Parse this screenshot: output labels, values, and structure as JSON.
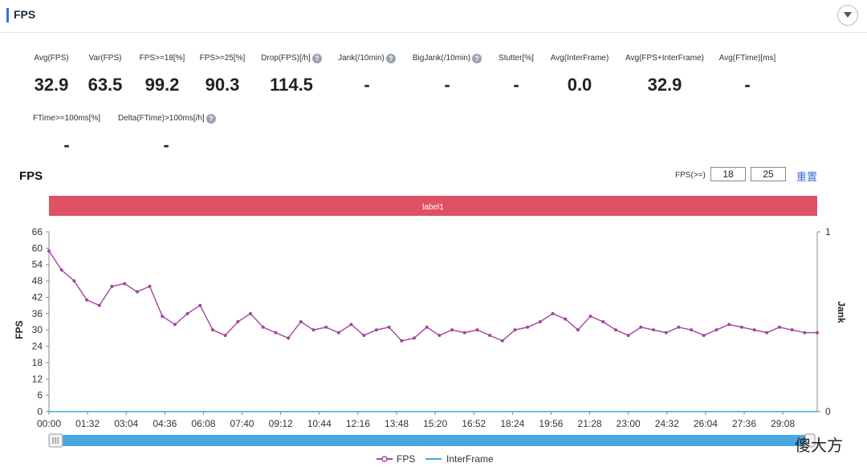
{
  "panel": {
    "title": "FPS"
  },
  "metrics": [
    {
      "label": "Avg(FPS)",
      "value": "32.9",
      "help": false
    },
    {
      "label": "Var(FPS)",
      "value": "63.5",
      "help": false
    },
    {
      "label": "FPS>=18[%]",
      "value": "99.2",
      "help": false
    },
    {
      "label": "FPS>=25[%]",
      "value": "90.3",
      "help": false
    },
    {
      "label": "Drop(FPS)[/h]",
      "value": "114.5",
      "help": true
    },
    {
      "label": "Jank(/10min)",
      "value": "-",
      "help": true
    },
    {
      "label": "BigJank(/10min)",
      "value": "-",
      "help": true
    },
    {
      "label": "Stutter[%]",
      "value": "-",
      "help": false
    },
    {
      "label": "Avg(InterFrame)",
      "value": "0.0",
      "help": false
    },
    {
      "label": "Avg(FPS+InterFrame)",
      "value": "32.9",
      "help": false
    },
    {
      "label": "Avg(FTime)[ms]",
      "value": "-",
      "help": false
    },
    {
      "label": "FTime>=100ms[%]",
      "value": "-",
      "help": false
    },
    {
      "label": "Delta(FTime)>100ms[/h]",
      "value": "-",
      "help": true
    }
  ],
  "help_glyph": "?",
  "chart_header": {
    "title": "FPS",
    "threshold_label": "FPS(>=)",
    "threshold_1": "18",
    "threshold_2": "25",
    "reset_label": "重置"
  },
  "watermark": "傻大方",
  "chart_data": {
    "type": "line",
    "ylabel": "FPS",
    "y2label": "Jank",
    "ylim": [
      0,
      66
    ],
    "yticks": [
      0,
      6,
      12,
      18,
      24,
      30,
      36,
      42,
      48,
      54,
      60,
      66
    ],
    "y2lim": [
      0,
      1
    ],
    "y2ticks": [
      0,
      1
    ],
    "xlim": [
      0,
      1830
    ],
    "xticks": [
      {
        "t": 0,
        "label": "00:00"
      },
      {
        "t": 92,
        "label": "01:32"
      },
      {
        "t": 184,
        "label": "03:04"
      },
      {
        "t": 276,
        "label": "04:36"
      },
      {
        "t": 368,
        "label": "06:08"
      },
      {
        "t": 460,
        "label": "07:40"
      },
      {
        "t": 552,
        "label": "09:12"
      },
      {
        "t": 644,
        "label": "10:44"
      },
      {
        "t": 736,
        "label": "12:16"
      },
      {
        "t": 828,
        "label": "13:48"
      },
      {
        "t": 920,
        "label": "15:20"
      },
      {
        "t": 1012,
        "label": "16:52"
      },
      {
        "t": 1104,
        "label": "18:24"
      },
      {
        "t": 1196,
        "label": "19:56"
      },
      {
        "t": 1288,
        "label": "21:28"
      },
      {
        "t": 1380,
        "label": "23:00"
      },
      {
        "t": 1472,
        "label": "24:32"
      },
      {
        "t": 1564,
        "label": "26:04"
      },
      {
        "t": 1656,
        "label": "27:36"
      },
      {
        "t": 1748,
        "label": "29:08"
      }
    ],
    "band_label": "label1",
    "band_color": "#e05163",
    "grid": false,
    "legend_position": "bottom-center",
    "series": [
      {
        "name": "FPS",
        "color": "#a3449e",
        "marker": "circle",
        "x": [
          0,
          30,
          60,
          90,
          120,
          150,
          180,
          210,
          240,
          270,
          300,
          330,
          360,
          390,
          420,
          450,
          480,
          510,
          540,
          570,
          600,
          630,
          660,
          690,
          720,
          750,
          780,
          810,
          840,
          870,
          900,
          930,
          960,
          990,
          1020,
          1050,
          1080,
          1110,
          1140,
          1170,
          1200,
          1230,
          1260,
          1290,
          1320,
          1350,
          1380,
          1410,
          1440,
          1470,
          1500,
          1530,
          1560,
          1590,
          1620,
          1650,
          1680,
          1710,
          1740,
          1770,
          1800,
          1830
        ],
        "values": [
          59,
          52,
          48,
          41,
          39,
          46,
          47,
          44,
          46,
          35,
          32,
          36,
          39,
          30,
          28,
          33,
          36,
          31,
          29,
          27,
          33,
          30,
          31,
          29,
          32,
          28,
          30,
          31,
          26,
          27,
          31,
          28,
          30,
          29,
          30,
          28,
          26,
          30,
          31,
          33,
          36,
          34,
          30,
          35,
          33,
          30,
          28,
          31,
          30,
          29,
          31,
          30,
          28,
          30,
          32,
          31,
          30,
          29,
          31,
          30,
          29,
          29
        ]
      },
      {
        "name": "InterFrame",
        "color": "#42a6d9",
        "marker": "none",
        "x": [
          0,
          1830
        ],
        "values": [
          0,
          0
        ]
      }
    ]
  }
}
